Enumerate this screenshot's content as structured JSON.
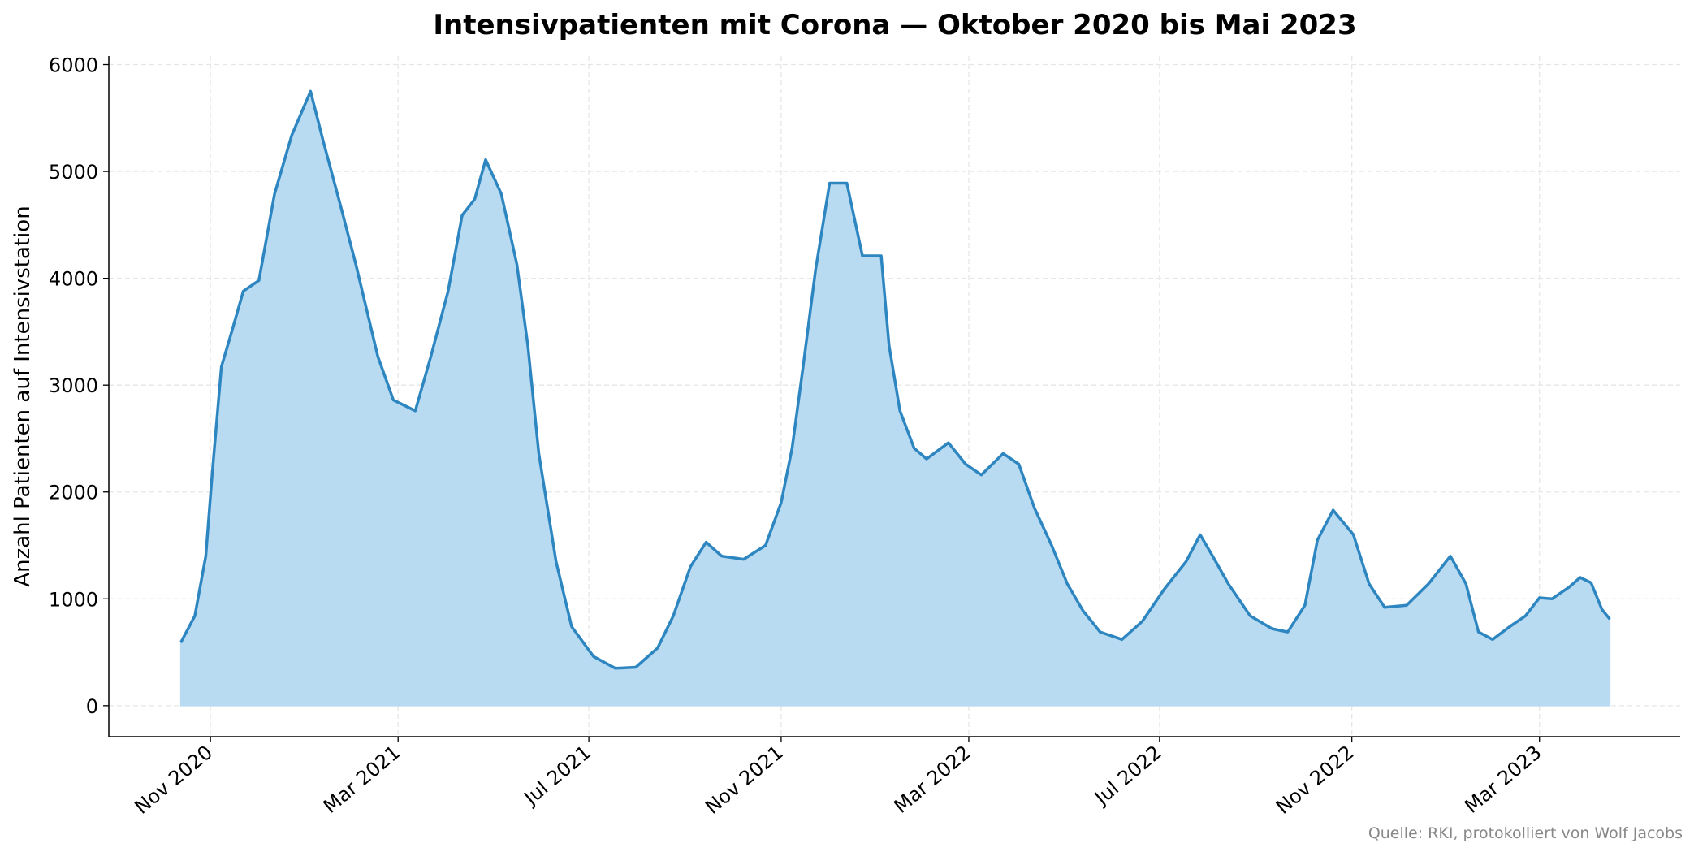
{
  "chart_data": {
    "type": "area",
    "title": "Intensivpatienten mit Corona — Oktober 2020 bis Mai 2023",
    "y_label": "Anzahl Patienten auf Intensivstation",
    "source": "Quelle: RKI, protokolliert von Wolf Jacobs",
    "x": [
      "2020-10-13",
      "2020-10-22",
      "2020-10-29",
      "2020-11-02",
      "2020-11-08",
      "2020-11-15",
      "2020-11-22",
      "2020-12-02",
      "2020-12-12",
      "2020-12-23",
      "2021-01-04",
      "2021-01-12",
      "2021-01-23",
      "2021-02-02",
      "2021-02-16",
      "2021-02-26",
      "2021-03-12",
      "2021-03-22",
      "2021-04-02",
      "2021-04-11",
      "2021-04-19",
      "2021-04-26",
      "2021-05-06",
      "2021-05-16",
      "2021-05-23",
      "2021-05-30",
      "2021-06-10",
      "2021-06-20",
      "2021-07-04",
      "2021-07-18",
      "2021-07-31",
      "2021-08-14",
      "2021-08-24",
      "2021-09-04",
      "2021-09-14",
      "2021-09-24",
      "2021-10-08",
      "2021-10-22",
      "2021-11-01",
      "2021-11-08",
      "2021-11-15",
      "2021-11-23",
      "2021-12-02",
      "2021-12-13",
      "2021-12-23",
      "2022-01-04",
      "2022-01-09",
      "2022-01-16",
      "2022-01-25",
      "2022-02-02",
      "2022-02-16",
      "2022-02-27",
      "2022-03-09",
      "2022-03-23",
      "2022-04-02",
      "2022-04-12",
      "2022-04-23",
      "2022-05-03",
      "2022-05-13",
      "2022-05-24",
      "2022-06-07",
      "2022-06-20",
      "2022-07-04",
      "2022-07-18",
      "2022-07-27",
      "2022-08-04",
      "2022-08-14",
      "2022-08-28",
      "2022-09-11",
      "2022-09-21",
      "2022-10-02",
      "2022-10-10",
      "2022-10-20",
      "2022-11-02",
      "2022-11-12",
      "2022-11-22",
      "2022-12-06",
      "2022-12-20",
      "2023-01-03",
      "2023-01-13",
      "2023-01-21",
      "2023-01-30",
      "2023-02-10",
      "2023-02-20",
      "2023-03-01",
      "2023-03-09",
      "2023-03-20",
      "2023-03-27",
      "2023-04-03",
      "2023-04-10",
      "2023-04-15"
    ],
    "series": [
      {
        "name": "Intensivpatienten",
        "color": "#2e86c1",
        "fill": "#b8dbf2",
        "values": [
          590,
          840,
          1400,
          2150,
          3170,
          3520,
          3880,
          3980,
          4790,
          5340,
          5750,
          5290,
          4690,
          4130,
          3270,
          2860,
          2760,
          3270,
          3880,
          4590,
          4740,
          5110,
          4790,
          4130,
          3370,
          2360,
          1350,
          740,
          460,
          350,
          360,
          540,
          840,
          1300,
          1530,
          1400,
          1370,
          1500,
          1900,
          2410,
          3170,
          4080,
          4890,
          4890,
          4210,
          4210,
          3370,
          2760,
          2410,
          2310,
          2460,
          2260,
          2160,
          2360,
          2260,
          1850,
          1500,
          1140,
          890,
          690,
          620,
          790,
          1090,
          1350,
          1600,
          1400,
          1140,
          840,
          720,
          690,
          940,
          1550,
          1830,
          1600,
          1140,
          920,
          940,
          1140,
          1400,
          1140,
          690,
          620,
          740,
          840,
          1010,
          1000,
          1110,
          1200,
          1150,
          900,
          810
        ]
      }
    ],
    "xlim": [
      "2020-08-28",
      "2023-05-30"
    ],
    "xticks": [
      {
        "value": "2020-11-01",
        "label": "Nov 2020"
      },
      {
        "value": "2021-03-01",
        "label": "Mar 2021"
      },
      {
        "value": "2021-07-01",
        "label": "Jul 2021"
      },
      {
        "value": "2021-11-01",
        "label": "Nov 2021"
      },
      {
        "value": "2022-03-01",
        "label": "Mar 2022"
      },
      {
        "value": "2022-07-01",
        "label": "Jul 2022"
      },
      {
        "value": "2022-11-01",
        "label": "Nov 2022"
      },
      {
        "value": "2023-03-01",
        "label": "Mar 2023"
      }
    ],
    "ylim": [
      -290,
      6080
    ],
    "yticks": [
      0,
      1000,
      2000,
      3000,
      4000,
      5000,
      6000
    ],
    "grid": true
  }
}
